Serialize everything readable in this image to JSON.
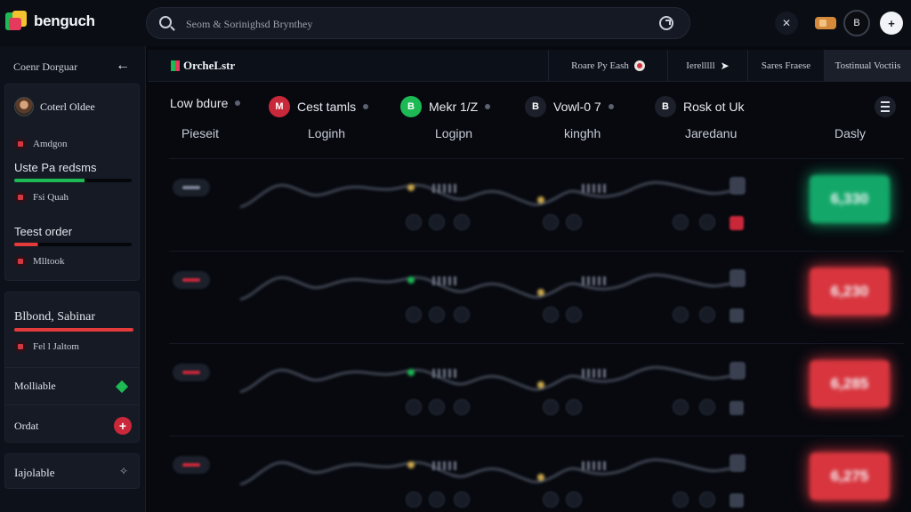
{
  "app": {
    "name": "benguch"
  },
  "search": {
    "placeholder": "Seom & Sorinighsd Brynthey"
  },
  "topbar": {
    "account_initial": "B",
    "close_glyph": "✕",
    "settings_glyph": "+"
  },
  "sidebar": {
    "header_title": "Coenr Dorguar",
    "back_glyph": "←",
    "profile_name": "Coterl Oldee",
    "section_label": "Amdgon",
    "items": [
      {
        "label": "Uste Pa redsms",
        "sub": "Fsi Quah",
        "bar_color": "#1db954",
        "bar_fraction": 0.6
      },
      {
        "label": "Teest order",
        "sub": "Mlltook",
        "bar_color": "#e53a3a",
        "bar_fraction": 0.2
      },
      {
        "label": "Blbond, Sabinar",
        "sub": "Fel l Jaltom",
        "bar_color": "#e53a3a",
        "bar_fraction": 1.0
      }
    ],
    "actions": [
      {
        "label": "Molliable",
        "icon": "diamond-icon",
        "color": "#1db954"
      },
      {
        "label": "Ordat",
        "icon": "plus-icon",
        "color": "#c9283a"
      }
    ],
    "footer_label": "Iajolable"
  },
  "main": {
    "title": "OrcheLstr",
    "tabs": [
      {
        "label": "Roare Py Eash"
      },
      {
        "label": "Ierelllll"
      },
      {
        "label": "Sares Fraese"
      },
      {
        "label": "Tostinual Voctiis"
      }
    ],
    "filters": [
      {
        "label": "Low bdure",
        "badge": "M",
        "badge_color": "#c9283a"
      },
      {
        "label": "Cest tamls",
        "badge": "B",
        "badge_color": "#1db954"
      },
      {
        "label": "Mekr 1/Z",
        "badge": "B",
        "badge_color": "#1b202b"
      },
      {
        "label": "Vowl-0 7",
        "badge": "B",
        "badge_color": "#1b202b"
      },
      {
        "label": "Rosk ot Uk",
        "badge": "",
        "badge_color": ""
      }
    ],
    "subheaders": [
      "Pieseit",
      "Loginh",
      "Logipn",
      "kinghh",
      "Jaredanu",
      "Dasly"
    ],
    "rows": [
      {
        "value": "6,330",
        "value_color": "#13a86a",
        "pill_color": "#7d8496",
        "dot_color": "#c9a64a"
      },
      {
        "value": "6,230",
        "value_color": "#d8353e",
        "pill_color": "#c9283a",
        "dot_color": "#1db954"
      },
      {
        "value": "6,285",
        "value_color": "#d8353e",
        "pill_color": "#c9283a",
        "dot_color": "#1db954"
      },
      {
        "value": "6,275",
        "value_color": "#d8353e",
        "pill_color": "#c9283a",
        "dot_color": "#c9a64a"
      }
    ]
  }
}
